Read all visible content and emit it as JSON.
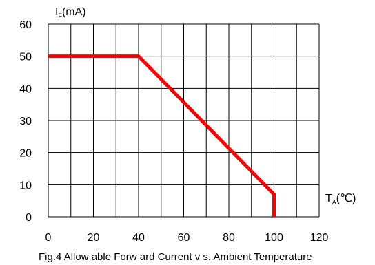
{
  "chart_data": {
    "type": "line",
    "x_ticks": [
      "0",
      "20",
      "40",
      "60",
      "80",
      "100",
      "120"
    ],
    "y_ticks": [
      "0",
      "10",
      "20",
      "30",
      "40",
      "50",
      "60"
    ],
    "xlim": [
      0,
      120
    ],
    "ylim": [
      0,
      60
    ],
    "grid": true,
    "ylabel": {
      "main": "I",
      "sub": "F",
      "unit": "(mA)"
    },
    "xlabel": {
      "main": "T",
      "sub": "A",
      "unit": "(℃)"
    },
    "caption": "Fig.4 Allow able Forw ard Current v s. Ambient Temperature",
    "series": [
      {
        "color": "#ff0000",
        "x": [
          0,
          40,
          100,
          100
        ],
        "y": [
          50,
          50,
          7,
          0
        ]
      }
    ]
  }
}
